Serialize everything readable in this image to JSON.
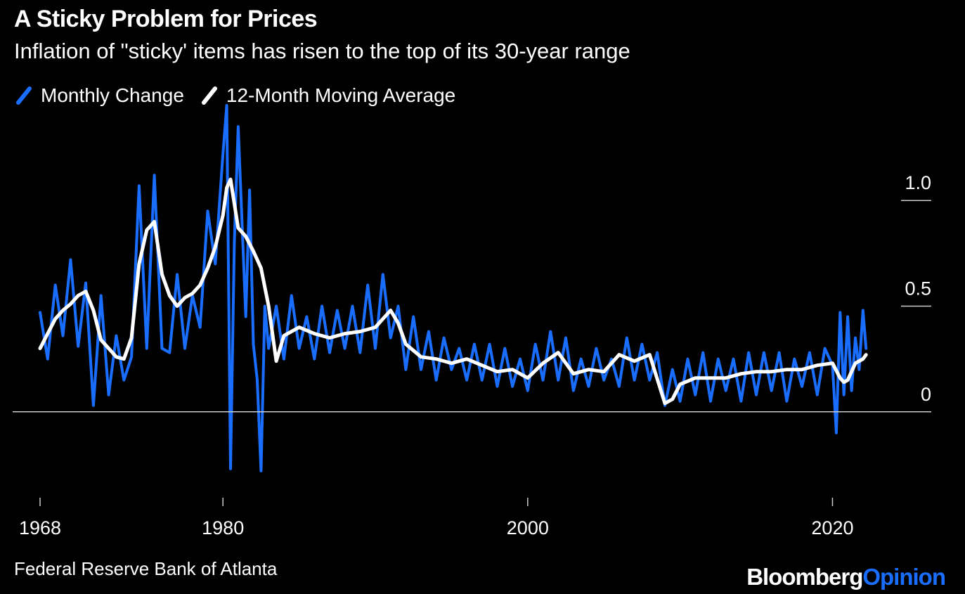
{
  "colors": {
    "background": "#000000",
    "monthly": "#1a6eff",
    "average": "#ffffff",
    "axis": "#cccccc"
  },
  "header": {
    "title": "A Sticky Problem for Prices",
    "subtitle": "Inflation of \"sticky' items has risen to the top of its 30-year range"
  },
  "footer": {
    "source": "Federal Reserve Bank of Atlanta",
    "brand_a": "Bloomberg",
    "brand_b": "Opinion"
  },
  "chart_data": {
    "type": "line",
    "title": "A Sticky Problem for Prices",
    "subtitle": "Inflation of \"sticky' items has risen to the top of its 30-year range",
    "xlabel": "",
    "ylabel": "",
    "xlim": [
      1968,
      2022.7
    ],
    "ylim": [
      -0.38,
      1.45
    ],
    "x_ticks": [
      1968,
      1980,
      2000,
      2020
    ],
    "x_tick_labels": [
      "1968",
      "1980",
      "2000",
      "2020"
    ],
    "y_ticks": [
      0,
      0.5,
      1.0
    ],
    "y_tick_labels": [
      "0",
      "0.5",
      "1.0"
    ],
    "y_axis_side": "right",
    "legend_position": "top-left",
    "grid": false,
    "series": [
      {
        "name": "Monthly Change",
        "color": "#1a6eff",
        "x": [
          1968,
          1968.5,
          1969,
          1969.5,
          1970,
          1970.5,
          1971,
          1971.5,
          1972,
          1972.5,
          1973,
          1973.5,
          1974,
          1974.5,
          1975,
          1975.5,
          1976,
          1976.5,
          1977,
          1977.5,
          1978,
          1978.5,
          1979,
          1979.5,
          1980,
          1980.25,
          1980.5,
          1980.75,
          1981,
          1981.25,
          1981.5,
          1981.75,
          1982,
          1982.25,
          1982.5,
          1982.75,
          1983,
          1983.5,
          1984,
          1984.5,
          1985,
          1985.5,
          1986,
          1986.5,
          1987,
          1987.5,
          1988,
          1988.5,
          1989,
          1989.5,
          1990,
          1990.5,
          1991,
          1991.5,
          1992,
          1992.5,
          1993,
          1993.5,
          1994,
          1994.5,
          1995,
          1995.5,
          1996,
          1996.5,
          1997,
          1997.5,
          1998,
          1998.5,
          1999,
          1999.5,
          2000,
          2000.5,
          2001,
          2001.5,
          2002,
          2002.5,
          2003,
          2003.5,
          2004,
          2004.5,
          2005,
          2005.5,
          2006,
          2006.5,
          2007,
          2007.5,
          2008,
          2008.5,
          2009,
          2009.5,
          2010,
          2010.5,
          2011,
          2011.5,
          2012,
          2012.5,
          2013,
          2013.5,
          2014,
          2014.5,
          2015,
          2015.5,
          2016,
          2016.5,
          2017,
          2017.5,
          2018,
          2018.5,
          2019,
          2019.5,
          2020,
          2020.25,
          2020.5,
          2020.75,
          2021,
          2021.25,
          2021.5,
          2021.75,
          2022,
          2022.2
        ],
        "values": [
          0.47,
          0.25,
          0.6,
          0.36,
          0.72,
          0.31,
          0.61,
          0.03,
          0.55,
          0.08,
          0.36,
          0.15,
          0.26,
          1.07,
          0.3,
          1.12,
          0.3,
          0.28,
          0.65,
          0.3,
          0.55,
          0.4,
          0.95,
          0.7,
          1.22,
          1.45,
          -0.27,
          0.8,
          1.35,
          0.9,
          0.45,
          1.05,
          0.32,
          0.15,
          -0.28,
          0.5,
          0.3,
          0.5,
          0.25,
          0.55,
          0.3,
          0.45,
          0.25,
          0.5,
          0.28,
          0.48,
          0.3,
          0.5,
          0.28,
          0.6,
          0.3,
          0.65,
          0.35,
          0.5,
          0.2,
          0.45,
          0.2,
          0.38,
          0.15,
          0.35,
          0.2,
          0.3,
          0.15,
          0.32,
          0.15,
          0.32,
          0.12,
          0.3,
          0.12,
          0.25,
          0.1,
          0.32,
          0.15,
          0.38,
          0.15,
          0.35,
          0.1,
          0.25,
          0.12,
          0.3,
          0.15,
          0.25,
          0.12,
          0.35,
          0.15,
          0.32,
          0.15,
          0.28,
          0.03,
          0.2,
          0.05,
          0.25,
          0.08,
          0.28,
          0.05,
          0.25,
          0.1,
          0.25,
          0.05,
          0.28,
          0.08,
          0.28,
          0.1,
          0.28,
          0.05,
          0.25,
          0.12,
          0.28,
          0.08,
          0.3,
          0.22,
          -0.1,
          0.47,
          0.08,
          0.45,
          0.1,
          0.35,
          0.2,
          0.48,
          0.3
        ]
      },
      {
        "name": "12-Month Moving Average",
        "color": "#ffffff",
        "x": [
          1968,
          1968.5,
          1969,
          1969.5,
          1970,
          1970.5,
          1971,
          1971.5,
          1972,
          1972.5,
          1973,
          1973.5,
          1974,
          1974.5,
          1975,
          1975.5,
          1976,
          1976.5,
          1977,
          1977.5,
          1978,
          1978.5,
          1979,
          1979.5,
          1980,
          1980.25,
          1980.5,
          1981,
          1981.5,
          1982,
          1982.5,
          1983,
          1983.5,
          1984,
          1985,
          1986,
          1987,
          1988,
          1989,
          1990,
          1991,
          1991.5,
          1992,
          1993,
          1994,
          1995,
          1996,
          1997,
          1998,
          1999,
          2000,
          2001,
          2002,
          2003,
          2004,
          2005,
          2006,
          2007,
          2008,
          2009,
          2009.5,
          2010,
          2011,
          2012,
          2013,
          2014,
          2015,
          2016,
          2017,
          2018,
          2019,
          2020,
          2020.5,
          2020.75,
          2021,
          2021.5,
          2022,
          2022.2
        ],
        "values": [
          0.3,
          0.37,
          0.44,
          0.48,
          0.51,
          0.55,
          0.57,
          0.48,
          0.34,
          0.3,
          0.26,
          0.25,
          0.35,
          0.7,
          0.86,
          0.9,
          0.65,
          0.55,
          0.5,
          0.54,
          0.56,
          0.6,
          0.68,
          0.78,
          0.93,
          1.06,
          1.1,
          0.87,
          0.83,
          0.76,
          0.68,
          0.5,
          0.24,
          0.36,
          0.4,
          0.37,
          0.35,
          0.37,
          0.38,
          0.4,
          0.48,
          0.42,
          0.32,
          0.26,
          0.25,
          0.23,
          0.25,
          0.22,
          0.19,
          0.2,
          0.16,
          0.23,
          0.28,
          0.18,
          0.2,
          0.19,
          0.27,
          0.24,
          0.27,
          0.04,
          0.06,
          0.13,
          0.16,
          0.16,
          0.16,
          0.18,
          0.19,
          0.19,
          0.2,
          0.2,
          0.22,
          0.23,
          0.16,
          0.14,
          0.15,
          0.23,
          0.25,
          0.27
        ]
      }
    ]
  }
}
